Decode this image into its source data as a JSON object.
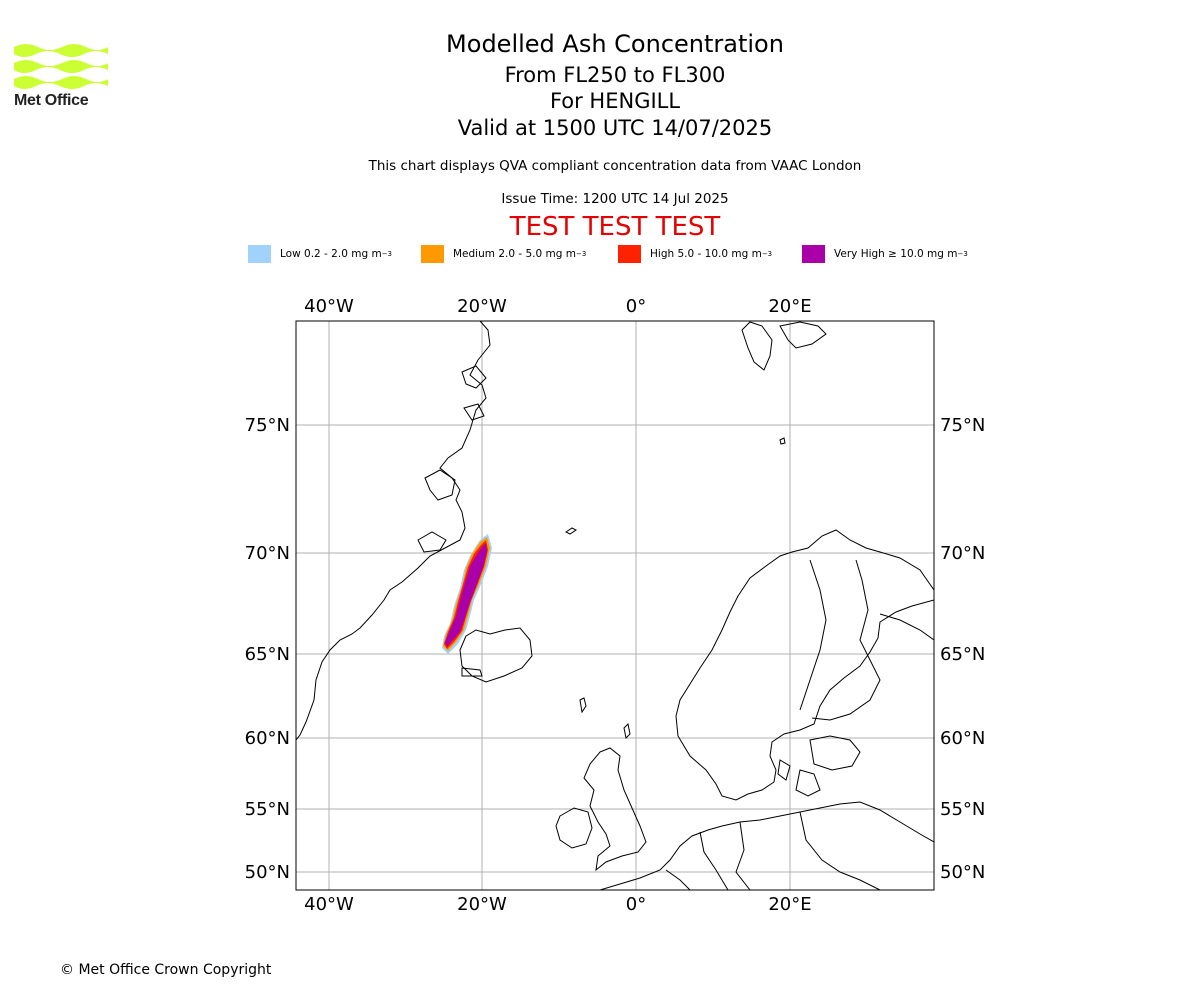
{
  "logo": {
    "name": "Met Office",
    "icon": "met-office-wave-logo",
    "color": "#ccff33"
  },
  "header": {
    "title": "Modelled Ash Concentration",
    "flight_levels": "From FL250 to FL300",
    "volcano": "For HENGILL",
    "valid_time": "Valid at 1500 UTC 14/07/2025",
    "note": "This chart displays QVA compliant concentration data from VAAC London",
    "issue_time": "Issue Time: 1200 UTC 14 Jul 2025",
    "test_banner": "TEST TEST TEST"
  },
  "legend": [
    {
      "label": "Low 0.2 - 2.0 mg m",
      "exp": "−3",
      "color": "#a0d2fa"
    },
    {
      "label": "Medium 2.0 - 5.0 mg m",
      "exp": "−3",
      "color": "#ff9900"
    },
    {
      "label": "High 5.0 - 10.0 mg m",
      "exp": "−3",
      "color": "#ff2200"
    },
    {
      "label": "Very High ≥ 10.0 mg m",
      "exp": "−3",
      "color": "#aa00aa"
    }
  ],
  "map": {
    "lon_labels": [
      "40°W",
      "20°W",
      "0°",
      "20°E"
    ],
    "lat_labels": [
      "75°N",
      "70°N",
      "65°N",
      "60°N",
      "55°N",
      "50°N"
    ],
    "grid": true
  },
  "footer": {
    "copyright": "© Met Office Crown Copyright"
  }
}
